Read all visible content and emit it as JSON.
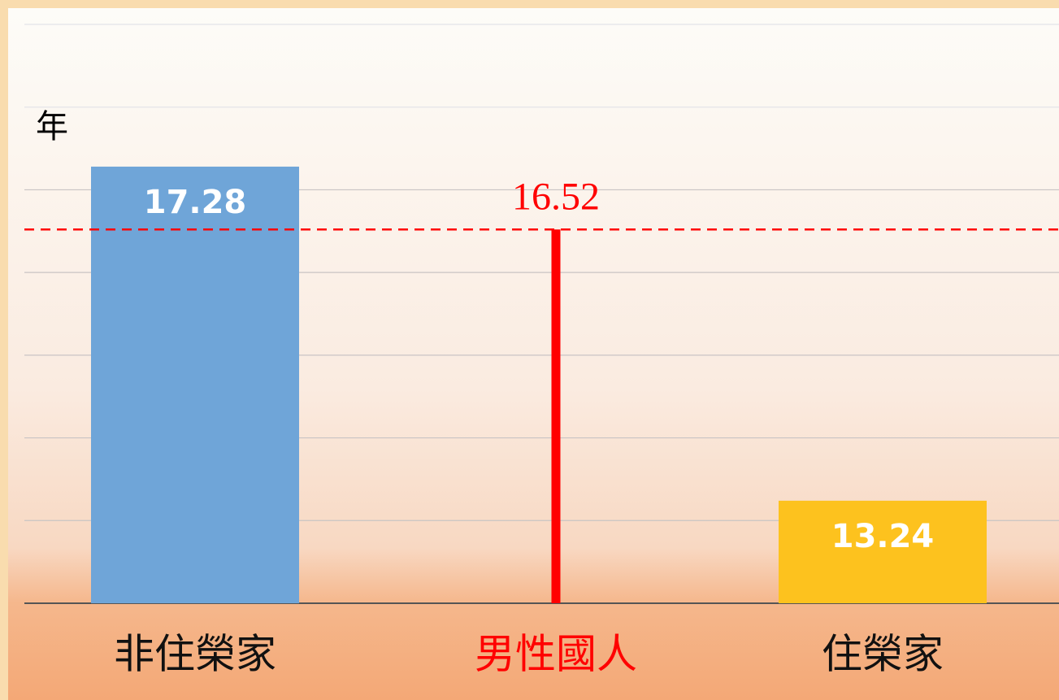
{
  "chart_data": {
    "type": "bar",
    "y_unit_label": "年",
    "categories": [
      "非住榮家",
      "男性國人",
      "住榮家"
    ],
    "values": [
      17.28,
      16.52,
      13.24
    ],
    "colors": [
      "#6fa5d8",
      "#ff0000",
      "#fdc21e"
    ],
    "highlight_index": 1,
    "ylim": [
      12,
      19
    ],
    "yticks": [
      12,
      13,
      14,
      15,
      16,
      17,
      18,
      19
    ],
    "grid": true
  }
}
